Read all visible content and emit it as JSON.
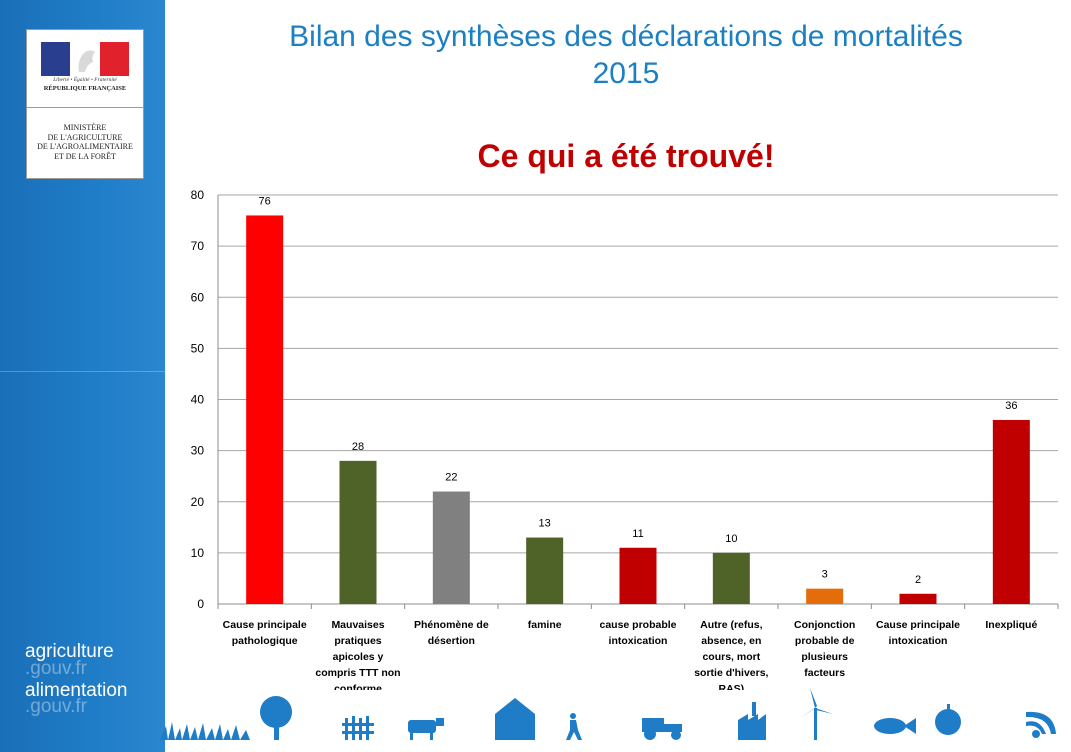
{
  "header": {
    "title_line1": "Bilan des synthèses des déclarations de mortalités",
    "title_line2": "2015",
    "subtitle": "Ce qui a été trouvé!"
  },
  "sidebar": {
    "logo": {
      "motto": "Liberté • Égalité • Fraternité",
      "republic": "RÉPUBLIQUE FRANÇAISE",
      "ministry_lines": [
        "MINISTÈRE",
        "DE L'AGRICULTURE",
        "DE L'AGROALIMENTAIRE",
        "ET DE LA FORÊT"
      ]
    },
    "brand": {
      "line1": "agriculture",
      "line1_sub": ".gouv.fr",
      "line2": "alimentation",
      "line2_sub": ".gouv.fr"
    },
    "colors": {
      "background": "#1f7cc6"
    }
  },
  "footer": {
    "icons": [
      "grass-icon",
      "tree-icon",
      "fence-icon",
      "cow-icon",
      "farmhouse-icon",
      "walker-icon",
      "tractor-icon",
      "factory-icon",
      "wind-turbine-icon",
      "fish-icon",
      "apple-icon",
      "wifi-icon"
    ]
  },
  "chart_data": {
    "type": "bar",
    "categories": [
      [
        "Cause principale",
        "pathologique"
      ],
      [
        "Mauvaises",
        "pratiques",
        "apicoles y",
        "compris TTT non",
        "conforme"
      ],
      [
        "Phénomène de",
        "désertion"
      ],
      [
        "famine"
      ],
      [
        "cause probable",
        "intoxication"
      ],
      [
        "Autre (refus,",
        "absence, en",
        "cours, mort",
        "sortie d'hivers,",
        "RAS)"
      ],
      [
        "Conjonction",
        "probable de",
        "plusieurs",
        "facteurs"
      ],
      [
        "Cause principale",
        "intoxication"
      ],
      [
        "Inexpliqué"
      ]
    ],
    "values": [
      76,
      28,
      22,
      13,
      11,
      10,
      3,
      2,
      36
    ],
    "data_labels": [
      "76",
      "28",
      "22",
      "13",
      "11",
      "10",
      "3",
      "2",
      "36"
    ],
    "colors": [
      "#ff0000",
      "#4f6228",
      "#808080",
      "#4f6228",
      "#c00000",
      "#4f6228",
      "#e46c0a",
      "#c00000",
      "#c00000"
    ],
    "ylim": [
      0,
      80
    ],
    "yticks": [
      0,
      10,
      20,
      30,
      40,
      50,
      60,
      70,
      80
    ],
    "ytick_labels": [
      "0",
      "10",
      "20",
      "30",
      "40",
      "50",
      "60",
      "70",
      "80"
    ],
    "grid": true,
    "legend": "none",
    "colors_meta": {
      "grid": "#a6a6a6",
      "axis_text": "#000000"
    }
  }
}
